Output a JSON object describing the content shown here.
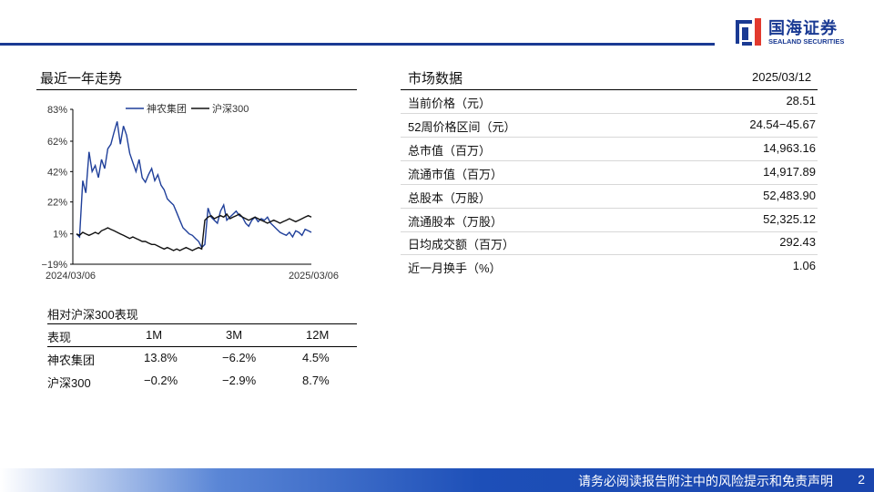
{
  "brand": {
    "name_cn": "国海证券",
    "name_en": "SEALAND SECURITIES",
    "color": "#1a3a93"
  },
  "trend": {
    "title": "最近一年走势"
  },
  "chart_data": {
    "type": "line",
    "x_start_label": "2024/03/06",
    "x_end_label": "2025/03/06",
    "yticks": [
      "83%",
      "62%",
      "42%",
      "22%",
      "1%",
      "−19%"
    ],
    "ytick_values": [
      83,
      62,
      42,
      22,
      1,
      -19
    ],
    "ylim": [
      -19,
      83
    ],
    "legend_position": "top",
    "series": [
      {
        "name": "神农集团",
        "color": "#1f3f9a",
        "values": [
          1,
          -1,
          36,
          28,
          55,
          42,
          46,
          38,
          50,
          44,
          57,
          60,
          68,
          75,
          60,
          72,
          66,
          54,
          48,
          42,
          50,
          38,
          35,
          40,
          44,
          36,
          40,
          33,
          30,
          24,
          22,
          20,
          15,
          10,
          5,
          3,
          1,
          0,
          -2,
          -4,
          -8,
          -6,
          18,
          12,
          10,
          8,
          16,
          20,
          10,
          12,
          14,
          16,
          13,
          12,
          8,
          6,
          10,
          12,
          9,
          11,
          10,
          12,
          8,
          6,
          4,
          2,
          1,
          0,
          2,
          -1,
          3,
          2,
          0,
          4,
          3,
          2
        ]
      },
      {
        "name": "沪深300",
        "color": "#111111",
        "values": [
          1,
          0,
          2,
          1,
          0,
          1,
          2,
          1,
          3,
          4,
          5,
          4,
          3,
          2,
          1,
          0,
          -1,
          -2,
          -1,
          -2,
          -3,
          -4,
          -4,
          -5,
          -6,
          -6,
          -7,
          -8,
          -9,
          -8,
          -9,
          -10,
          -9,
          -10,
          -9,
          -8,
          -9,
          -10,
          -9,
          -8,
          -9,
          10,
          12,
          13,
          11,
          12,
          13,
          12,
          14,
          11,
          12,
          13,
          14,
          12,
          11,
          10,
          11,
          12,
          11,
          10,
          9,
          8,
          9,
          10,
          9,
          8,
          9,
          10,
          11,
          10,
          9,
          10,
          11,
          12,
          13,
          12
        ]
      }
    ]
  },
  "market": {
    "title": "市场数据",
    "date": "2025/03/12",
    "rows": [
      {
        "label": "当前价格（元）",
        "value": "28.51"
      },
      {
        "label": "52周价格区间（元）",
        "value": "24.54−45.67"
      },
      {
        "label": "总市值（百万）",
        "value": "14,963.16"
      },
      {
        "label": "流通市值（百万）",
        "value": "14,917.89"
      },
      {
        "label": "总股本（万股）",
        "value": "52,483.90"
      },
      {
        "label": "流通股本（万股）",
        "value": "52,325.12"
      },
      {
        "label": "日均成交额（百万）",
        "value": "292.43"
      },
      {
        "label": "近一月换手（%）",
        "value": "1.06"
      }
    ]
  },
  "performance": {
    "title": "相对沪深300表现",
    "headers": [
      "表现",
      "1M",
      "3M",
      "12M"
    ],
    "rows": [
      [
        "神农集团",
        "13.8%",
        "−6.2%",
        "4.5%"
      ],
      [
        "沪深300",
        "−0.2%",
        "−2.9%",
        "8.7%"
      ]
    ]
  },
  "footer": {
    "disclaimer": "请务必阅读报告附注中的风险提示和免责声明",
    "page": "2"
  }
}
